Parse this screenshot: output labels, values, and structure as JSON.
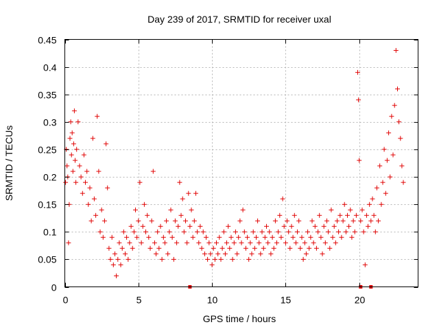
{
  "chart_data": {
    "type": "scatter",
    "title": "Day 239 of 2017, SRMTID for receiver uxal",
    "xlabel": "GPS time / hours",
    "ylabel": "SRMTID / TECUs",
    "xlim": [
      0,
      24
    ],
    "ylim": [
      0,
      0.45
    ],
    "xticks": [
      0,
      5,
      10,
      15,
      20
    ],
    "xtick_labels": [
      "0",
      "5",
      "10",
      "15",
      "20"
    ],
    "yticks": [
      0,
      0.05,
      0.1,
      0.15,
      0.2,
      0.25,
      0.3,
      0.35,
      0.4,
      0.45
    ],
    "ytick_labels": [
      "0",
      "0.05",
      "0.1",
      "0.15",
      "0.2",
      "0.25",
      "0.3",
      "0.35",
      "0.4",
      "0.45"
    ],
    "grid": true,
    "marker": "plus",
    "color": "#e00000",
    "series": [
      {
        "name": "SRMTID",
        "points": [
          [
            0.05,
            0.19
          ],
          [
            0.1,
            0.25
          ],
          [
            0.15,
            0.22
          ],
          [
            0.2,
            0.2
          ],
          [
            0.25,
            0.08
          ],
          [
            0.3,
            0.15
          ],
          [
            0.35,
            0.27
          ],
          [
            0.4,
            0.3
          ],
          [
            0.45,
            0.24
          ],
          [
            0.5,
            0.28
          ],
          [
            0.55,
            0.21
          ],
          [
            0.6,
            0.26
          ],
          [
            0.65,
            0.32
          ],
          [
            0.7,
            0.23
          ],
          [
            0.75,
            0.19
          ],
          [
            0.8,
            0.25
          ],
          [
            0.9,
            0.3
          ],
          [
            1.0,
            0.22
          ],
          [
            1.1,
            0.2
          ],
          [
            1.2,
            0.17
          ],
          [
            1.3,
            0.24
          ],
          [
            1.4,
            0.19
          ],
          [
            1.5,
            0.21
          ],
          [
            1.6,
            0.15
          ],
          [
            1.7,
            0.18
          ],
          [
            1.8,
            0.12
          ],
          [
            1.9,
            0.27
          ],
          [
            2.0,
            0.16
          ],
          [
            2.1,
            0.13
          ],
          [
            2.2,
            0.31
          ],
          [
            2.3,
            0.21
          ],
          [
            2.4,
            0.1
          ],
          [
            2.5,
            0.14
          ],
          [
            2.6,
            0.09
          ],
          [
            2.7,
            0.12
          ],
          [
            2.8,
            0.26
          ],
          [
            2.9,
            0.18
          ],
          [
            3.0,
            0.07
          ],
          [
            3.1,
            0.05
          ],
          [
            3.2,
            0.09
          ],
          [
            3.3,
            0.04
          ],
          [
            3.4,
            0.06
          ],
          [
            3.5,
            0.02
          ],
          [
            3.6,
            0.05
          ],
          [
            3.7,
            0.08
          ],
          [
            3.8,
            0.04
          ],
          [
            3.9,
            0.07
          ],
          [
            4.0,
            0.1
          ],
          [
            4.1,
            0.06
          ],
          [
            4.2,
            0.09
          ],
          [
            4.3,
            0.05
          ],
          [
            4.4,
            0.08
          ],
          [
            4.5,
            0.11
          ],
          [
            4.6,
            0.07
          ],
          [
            4.7,
            0.1
          ],
          [
            4.8,
            0.14
          ],
          [
            4.9,
            0.09
          ],
          [
            5.0,
            0.12
          ],
          [
            5.1,
            0.19
          ],
          [
            5.2,
            0.08
          ],
          [
            5.3,
            0.11
          ],
          [
            5.4,
            0.15
          ],
          [
            5.5,
            0.1
          ],
          [
            5.6,
            0.13
          ],
          [
            5.7,
            0.09
          ],
          [
            5.8,
            0.07
          ],
          [
            5.9,
            0.12
          ],
          [
            6.0,
            0.21
          ],
          [
            6.1,
            0.08
          ],
          [
            6.2,
            0.06
          ],
          [
            6.3,
            0.1
          ],
          [
            6.4,
            0.07
          ],
          [
            6.5,
            0.11
          ],
          [
            6.6,
            0.05
          ],
          [
            6.7,
            0.09
          ],
          [
            6.8,
            0.08
          ],
          [
            6.9,
            0.12
          ],
          [
            7.0,
            0.06
          ],
          [
            7.1,
            0.1
          ],
          [
            7.2,
            0.14
          ],
          [
            7.3,
            0.09
          ],
          [
            7.4,
            0.05
          ],
          [
            7.5,
            0.12
          ],
          [
            7.6,
            0.08
          ],
          [
            7.7,
            0.11
          ],
          [
            7.8,
            0.19
          ],
          [
            7.9,
            0.13
          ],
          [
            8.0,
            0.16
          ],
          [
            8.1,
            0.1
          ],
          [
            8.2,
            0.12
          ],
          [
            8.3,
            0.08
          ],
          [
            8.4,
            0.17
          ],
          [
            8.5,
            0.11
          ],
          [
            8.6,
            0.14
          ],
          [
            8.7,
            0.09
          ],
          [
            8.8,
            0.12
          ],
          [
            8.9,
            0.17
          ],
          [
            9.0,
            0.1
          ],
          [
            9.1,
            0.08
          ],
          [
            9.2,
            0.11
          ],
          [
            9.3,
            0.07
          ],
          [
            9.4,
            0.1
          ],
          [
            9.5,
            0.06
          ],
          [
            9.6,
            0.09
          ],
          [
            9.7,
            0.05
          ],
          [
            9.8,
            0.08
          ],
          [
            9.9,
            0.06
          ],
          [
            10.0,
            0.04
          ],
          [
            10.1,
            0.07
          ],
          [
            10.2,
            0.05
          ],
          [
            10.3,
            0.08
          ],
          [
            10.4,
            0.06
          ],
          [
            10.5,
            0.09
          ],
          [
            10.6,
            0.05
          ],
          [
            10.7,
            0.07
          ],
          [
            10.8,
            0.1
          ],
          [
            10.9,
            0.06
          ],
          [
            11.0,
            0.08
          ],
          [
            11.1,
            0.11
          ],
          [
            11.2,
            0.07
          ],
          [
            11.3,
            0.09
          ],
          [
            11.4,
            0.05
          ],
          [
            11.5,
            0.08
          ],
          [
            11.6,
            0.1
          ],
          [
            11.7,
            0.06
          ],
          [
            11.8,
            0.09
          ],
          [
            11.9,
            0.12
          ],
          [
            12.0,
            0.08
          ],
          [
            12.1,
            0.14
          ],
          [
            12.2,
            0.1
          ],
          [
            12.3,
            0.07
          ],
          [
            12.4,
            0.09
          ],
          [
            12.5,
            0.05
          ],
          [
            12.6,
            0.08
          ],
          [
            12.7,
            0.06
          ],
          [
            12.8,
            0.1
          ],
          [
            12.9,
            0.07
          ],
          [
            13.0,
            0.09
          ],
          [
            13.1,
            0.12
          ],
          [
            13.2,
            0.08
          ],
          [
            13.3,
            0.06
          ],
          [
            13.4,
            0.1
          ],
          [
            13.5,
            0.07
          ],
          [
            13.6,
            0.09
          ],
          [
            13.7,
            0.11
          ],
          [
            13.8,
            0.08
          ],
          [
            13.9,
            0.1
          ],
          [
            14.0,
            0.06
          ],
          [
            14.1,
            0.09
          ],
          [
            14.2,
            0.07
          ],
          [
            14.3,
            0.12
          ],
          [
            14.4,
            0.08
          ],
          [
            14.5,
            0.1
          ],
          [
            14.6,
            0.13
          ],
          [
            14.7,
            0.09
          ],
          [
            14.8,
            0.16
          ],
          [
            14.9,
            0.11
          ],
          [
            15.0,
            0.08
          ],
          [
            15.1,
            0.12
          ],
          [
            15.2,
            0.1
          ],
          [
            15.3,
            0.07
          ],
          [
            15.4,
            0.11
          ],
          [
            15.5,
            0.09
          ],
          [
            15.6,
            0.13
          ],
          [
            15.7,
            0.08
          ],
          [
            15.8,
            0.1
          ],
          [
            15.9,
            0.12
          ],
          [
            16.0,
            0.07
          ],
          [
            16.1,
            0.09
          ],
          [
            16.2,
            0.05
          ],
          [
            16.3,
            0.08
          ],
          [
            16.4,
            0.06
          ],
          [
            16.5,
            0.1
          ],
          [
            16.6,
            0.07
          ],
          [
            16.7,
            0.09
          ],
          [
            16.8,
            0.12
          ],
          [
            16.9,
            0.08
          ],
          [
            17.0,
            0.11
          ],
          [
            17.1,
            0.07
          ],
          [
            17.2,
            0.1
          ],
          [
            17.3,
            0.13
          ],
          [
            17.4,
            0.09
          ],
          [
            17.5,
            0.06
          ],
          [
            17.6,
            0.11
          ],
          [
            17.7,
            0.08
          ],
          [
            17.8,
            0.12
          ],
          [
            17.9,
            0.1
          ],
          [
            18.0,
            0.07
          ],
          [
            18.1,
            0.14
          ],
          [
            18.2,
            0.09
          ],
          [
            18.3,
            0.11
          ],
          [
            18.4,
            0.08
          ],
          [
            18.5,
            0.12
          ],
          [
            18.6,
            0.1
          ],
          [
            18.7,
            0.13
          ],
          [
            18.8,
            0.09
          ],
          [
            18.9,
            0.12
          ],
          [
            19.0,
            0.15
          ],
          [
            19.1,
            0.1
          ],
          [
            19.2,
            0.13
          ],
          [
            19.3,
            0.11
          ],
          [
            19.4,
            0.14
          ],
          [
            19.5,
            0.09
          ],
          [
            19.6,
            0.12
          ],
          [
            19.7,
            0.1
          ],
          [
            19.8,
            0.13
          ],
          [
            19.9,
            0.39
          ],
          [
            19.95,
            0.34
          ],
          [
            20.0,
            0.23
          ],
          [
            20.1,
            0.12
          ],
          [
            20.2,
            0.14
          ],
          [
            20.3,
            0.1
          ],
          [
            20.4,
            0.04
          ],
          [
            20.5,
            0.13
          ],
          [
            20.6,
            0.11
          ],
          [
            20.7,
            0.15
          ],
          [
            20.8,
            0.12
          ],
          [
            20.9,
            0.16
          ],
          [
            21.0,
            0.13
          ],
          [
            21.1,
            0.1
          ],
          [
            21.2,
            0.18
          ],
          [
            21.3,
            0.12
          ],
          [
            21.4,
            0.22
          ],
          [
            21.5,
            0.15
          ],
          [
            21.6,
            0.19
          ],
          [
            21.7,
            0.25
          ],
          [
            21.8,
            0.17
          ],
          [
            21.9,
            0.23
          ],
          [
            22.0,
            0.28
          ],
          [
            22.1,
            0.2
          ],
          [
            22.2,
            0.31
          ],
          [
            22.3,
            0.24
          ],
          [
            22.4,
            0.33
          ],
          [
            22.5,
            0.43
          ],
          [
            22.6,
            0.36
          ],
          [
            22.7,
            0.3
          ],
          [
            22.8,
            0.27
          ],
          [
            22.9,
            0.22
          ],
          [
            23.0,
            0.19
          ]
        ]
      }
    ],
    "zero_markers": [
      8.5,
      20.1,
      20.8
    ]
  }
}
